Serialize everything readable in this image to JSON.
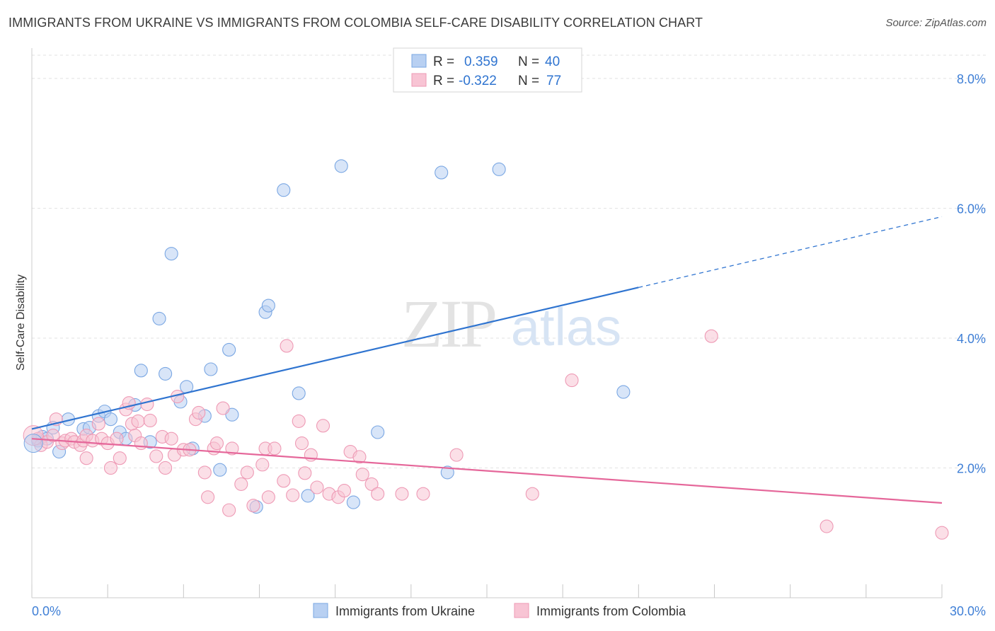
{
  "chart_data": {
    "type": "scatter",
    "title": "IMMIGRANTS FROM UKRAINE VS IMMIGRANTS FROM COLOMBIA SELF-CARE DISABILITY CORRELATION CHART",
    "source": "Source: ZipAtlas.com",
    "ylabel": "Self-Care Disability",
    "xlim": [
      0,
      30
    ],
    "ylim": [
      0,
      8.5
    ],
    "x_tick_labels": [
      "0.0%",
      "30.0%"
    ],
    "y_ticks": [
      2,
      4,
      6,
      8
    ],
    "y_tick_labels": [
      "2.0%",
      "4.0%",
      "6.0%",
      "8.0%"
    ],
    "grid": true,
    "legend_position": "top-center",
    "watermark": "ZIPatlas",
    "series": [
      {
        "name": "Immigrants from Ukraine",
        "color": "#7aa7e3",
        "fill": "#b8d0f2",
        "line_color": "#2f74d0",
        "R": "0.359",
        "N": "40",
        "trend": {
          "x0": 0,
          "y0": 2.6,
          "x_solid_end": 20,
          "x_dashed_end": 30,
          "slope": 0.109
        },
        "points": [
          [
            0.2,
            2.42
          ],
          [
            0.35,
            2.48
          ],
          [
            0.5,
            2.45
          ],
          [
            0.7,
            2.62
          ],
          [
            0.9,
            2.25
          ],
          [
            1.2,
            2.75
          ],
          [
            1.7,
            2.6
          ],
          [
            1.9,
            2.62
          ],
          [
            2.2,
            2.8
          ],
          [
            2.4,
            2.87
          ],
          [
            2.6,
            2.75
          ],
          [
            2.9,
            2.55
          ],
          [
            3.1,
            2.45
          ],
          [
            3.4,
            2.97
          ],
          [
            3.6,
            3.5
          ],
          [
            3.9,
            2.4
          ],
          [
            4.2,
            4.3
          ],
          [
            4.4,
            3.45
          ],
          [
            4.6,
            5.3
          ],
          [
            4.9,
            3.02
          ],
          [
            5.1,
            3.25
          ],
          [
            5.3,
            2.3
          ],
          [
            5.7,
            2.8
          ],
          [
            5.9,
            3.52
          ],
          [
            6.2,
            1.97
          ],
          [
            6.5,
            3.82
          ],
          [
            6.6,
            2.82
          ],
          [
            7.4,
            1.4
          ],
          [
            7.7,
            4.4
          ],
          [
            7.8,
            4.5
          ],
          [
            8.3,
            6.28
          ],
          [
            8.8,
            3.15
          ],
          [
            9.1,
            1.57
          ],
          [
            10.2,
            6.65
          ],
          [
            10.6,
            1.47
          ],
          [
            11.4,
            2.55
          ],
          [
            13.7,
            1.93
          ],
          [
            13.5,
            6.55
          ],
          [
            15.4,
            6.6
          ],
          [
            19.5,
            3.17
          ]
        ]
      },
      {
        "name": "Immigrants from Colombia",
        "color": "#ee9ab5",
        "fill": "#f8c4d4",
        "line_color": "#e5679a",
        "R": "-0.322",
        "N": "77",
        "trend": {
          "x0": 0,
          "y0": 2.45,
          "x_solid_end": 30,
          "slope": -0.033
        },
        "points": [
          [
            0.2,
            2.45
          ],
          [
            0.3,
            2.35
          ],
          [
            0.5,
            2.4
          ],
          [
            0.7,
            2.5
          ],
          [
            0.8,
            2.75
          ],
          [
            1.0,
            2.38
          ],
          [
            1.1,
            2.42
          ],
          [
            1.3,
            2.45
          ],
          [
            1.4,
            2.4
          ],
          [
            1.6,
            2.35
          ],
          [
            1.7,
            2.42
          ],
          [
            1.8,
            2.5
          ],
          [
            1.8,
            2.15
          ],
          [
            2.0,
            2.42
          ],
          [
            2.2,
            2.68
          ],
          [
            2.3,
            2.45
          ],
          [
            2.5,
            2.38
          ],
          [
            2.6,
            2.0
          ],
          [
            2.8,
            2.45
          ],
          [
            2.9,
            2.15
          ],
          [
            3.1,
            2.9
          ],
          [
            3.2,
            3.0
          ],
          [
            3.3,
            2.68
          ],
          [
            3.4,
            2.5
          ],
          [
            3.5,
            2.72
          ],
          [
            3.6,
            2.38
          ],
          [
            3.8,
            2.98
          ],
          [
            3.9,
            2.73
          ],
          [
            4.1,
            2.18
          ],
          [
            4.3,
            2.48
          ],
          [
            4.4,
            2.0
          ],
          [
            4.6,
            2.45
          ],
          [
            4.7,
            2.2
          ],
          [
            4.8,
            3.1
          ],
          [
            5.0,
            2.28
          ],
          [
            5.2,
            2.28
          ],
          [
            5.4,
            2.75
          ],
          [
            5.5,
            2.85
          ],
          [
            5.7,
            1.93
          ],
          [
            5.8,
            1.55
          ],
          [
            6.0,
            2.3
          ],
          [
            6.1,
            2.38
          ],
          [
            6.3,
            2.92
          ],
          [
            6.5,
            1.35
          ],
          [
            6.6,
            2.3
          ],
          [
            6.9,
            1.75
          ],
          [
            7.1,
            1.93
          ],
          [
            7.3,
            1.42
          ],
          [
            7.6,
            2.05
          ],
          [
            7.7,
            2.3
          ],
          [
            7.8,
            1.55
          ],
          [
            8.0,
            2.3
          ],
          [
            8.3,
            1.8
          ],
          [
            8.4,
            3.88
          ],
          [
            8.6,
            1.58
          ],
          [
            8.8,
            2.72
          ],
          [
            8.9,
            2.38
          ],
          [
            9.0,
            1.92
          ],
          [
            9.2,
            2.2
          ],
          [
            9.4,
            1.7
          ],
          [
            9.6,
            2.65
          ],
          [
            9.8,
            1.6
          ],
          [
            10.1,
            1.55
          ],
          [
            10.3,
            1.65
          ],
          [
            10.5,
            2.25
          ],
          [
            10.8,
            2.17
          ],
          [
            10.9,
            1.9
          ],
          [
            11.2,
            1.75
          ],
          [
            11.4,
            1.6
          ],
          [
            12.2,
            1.6
          ],
          [
            12.9,
            1.6
          ],
          [
            14.0,
            2.2
          ],
          [
            16.5,
            1.6
          ],
          [
            17.8,
            3.35
          ],
          [
            22.4,
            4.03
          ],
          [
            26.2,
            1.1
          ],
          [
            30.0,
            1.0
          ]
        ]
      }
    ]
  }
}
